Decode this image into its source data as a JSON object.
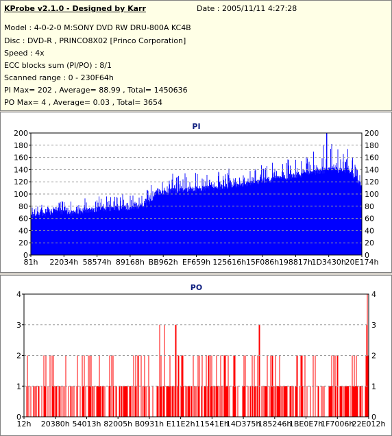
{
  "header": {
    "title": "KProbe v2.1.0 - Designed by Karr",
    "date": "Date : 2005/11/11 4:27:28",
    "lines": [
      "Model : 4-0-2-0 M:SONY    DVD RW DRU-800A  KC4B",
      "Disc : DVD-R , PRINCO8X02 [Princo Corporation]",
      "Speed : 4x",
      "ECC blocks sum (PI/PO) : 8/1",
      "Scanned range : 0 - 230F64h",
      "PI Max= 202 , Average= 88.99 , Total= 1450636",
      "PO Max= 4 , Average= 0.03 , Total= 3654"
    ]
  },
  "chart_data": [
    {
      "type": "bar",
      "title": "PI",
      "x_ticks": [
        "81h",
        "22034h",
        "58574h",
        "89168h",
        "BB962h",
        "EF659h",
        "125616h",
        "15F086h",
        "198817h",
        "1D3430h",
        "20E174h"
      ],
      "ylim": [
        0,
        200
      ],
      "y_ticks": [
        0,
        20,
        40,
        60,
        80,
        100,
        120,
        140,
        160,
        180,
        200
      ],
      "grid": true,
      "color": "#0000ff",
      "max": 202,
      "average": 88.99,
      "profile": [
        {
          "x": 0.0,
          "base": 62,
          "spike": 82
        },
        {
          "x": 0.02,
          "base": 66,
          "spike": 84
        },
        {
          "x": 0.05,
          "base": 68,
          "spike": 86
        },
        {
          "x": 0.08,
          "base": 74,
          "spike": 94
        },
        {
          "x": 0.11,
          "base": 68,
          "spike": 90
        },
        {
          "x": 0.16,
          "base": 72,
          "spike": 94
        },
        {
          "x": 0.22,
          "base": 76,
          "spike": 98
        },
        {
          "x": 0.3,
          "base": 78,
          "spike": 102
        },
        {
          "x": 0.35,
          "base": 82,
          "spike": 106
        },
        {
          "x": 0.38,
          "base": 102,
          "spike": 126
        },
        {
          "x": 0.44,
          "base": 106,
          "spike": 140
        },
        {
          "x": 0.5,
          "base": 108,
          "spike": 140
        },
        {
          "x": 0.58,
          "base": 112,
          "spike": 142
        },
        {
          "x": 0.66,
          "base": 118,
          "spike": 146
        },
        {
          "x": 0.73,
          "base": 124,
          "spike": 152
        },
        {
          "x": 0.8,
          "base": 130,
          "spike": 160
        },
        {
          "x": 0.86,
          "base": 136,
          "spike": 172
        },
        {
          "x": 0.91,
          "base": 140,
          "spike": 190
        },
        {
          "x": 0.96,
          "base": 138,
          "spike": 176
        },
        {
          "x": 1.0,
          "base": 116,
          "spike": 130
        }
      ]
    },
    {
      "type": "bar",
      "title": "PO",
      "x_ticks": [
        "12h",
        "20380h",
        "54013h",
        "82005h",
        "B0931h",
        "E11E2h",
        "11541Eh",
        "14D375h",
        "185246h",
        "1BE0E7h",
        "1F7006h",
        "22E012h"
      ],
      "ylim": [
        0,
        4
      ],
      "y_ticks": [
        0,
        1,
        2,
        3,
        4
      ],
      "grid": true,
      "color": "#ff0000",
      "max": 4,
      "average": 0.03,
      "threes": [
        0.394,
        0.408,
        0.441,
        0.684,
        0.997
      ],
      "four": [
        0.998
      ]
    }
  ]
}
